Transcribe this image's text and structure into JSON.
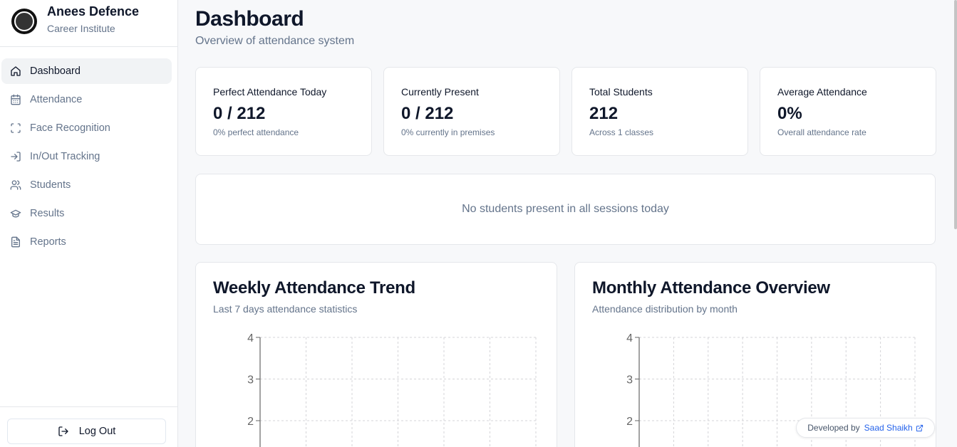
{
  "brand": {
    "name": "Anees Defence",
    "subtitle": "Career Institute"
  },
  "sidebar": {
    "items": [
      {
        "label": "Dashboard",
        "icon": "home-icon",
        "active": true
      },
      {
        "label": "Attendance",
        "icon": "calendar-icon",
        "active": false
      },
      {
        "label": "Face Recognition",
        "icon": "scan-icon",
        "active": false
      },
      {
        "label": "In/Out Tracking",
        "icon": "log-in-icon",
        "active": false
      },
      {
        "label": "Students",
        "icon": "users-icon",
        "active": false
      },
      {
        "label": "Results",
        "icon": "graduation-cap-icon",
        "active": false
      },
      {
        "label": "Reports",
        "icon": "file-text-icon",
        "active": false
      }
    ],
    "logout_label": "Log Out"
  },
  "header": {
    "title": "Dashboard",
    "subtitle": "Overview of attendance system"
  },
  "stats": [
    {
      "title": "Perfect Attendance Today",
      "value": "0 / 212",
      "description": "0% perfect attendance"
    },
    {
      "title": "Currently Present",
      "value": "0 / 212",
      "description": "0% currently in premises"
    },
    {
      "title": "Total Students",
      "value": "212",
      "description": "Across 1 classes"
    },
    {
      "title": "Average Attendance",
      "value": "0%",
      "description": "Overall attendance rate"
    }
  ],
  "empty_state": {
    "text": "No students present in all sessions today"
  },
  "charts": {
    "weekly": {
      "title": "Weekly Attendance Trend",
      "subtitle": "Last 7 days attendance statistics"
    },
    "monthly": {
      "title": "Monthly Attendance Overview",
      "subtitle": "Attendance distribution by month"
    }
  },
  "chart_data": [
    {
      "type": "bar",
      "title": "Weekly Attendance Trend",
      "y_ticks": [
        "4",
        "3",
        "2"
      ],
      "ylim": [
        0,
        4
      ],
      "grid": true,
      "visible_columns": 6
    },
    {
      "type": "bar",
      "title": "Monthly Attendance Overview",
      "y_ticks": [
        "4",
        "3",
        "2"
      ],
      "ylim": [
        0,
        4
      ],
      "grid": true,
      "visible_columns": 8
    }
  ],
  "credit": {
    "prefix": "Developed by",
    "author": "Saad Shaikh"
  },
  "colors": {
    "accent": "#2563eb",
    "muted": "#64748b",
    "text": "#0f172a",
    "border": "#e5e7eb"
  }
}
